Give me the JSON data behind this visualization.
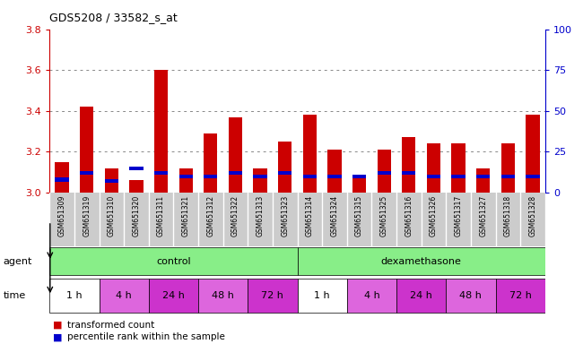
{
  "title": "GDS5208 / 33582_s_at",
  "samples": [
    "GSM651309",
    "GSM651319",
    "GSM651310",
    "GSM651320",
    "GSM651311",
    "GSM651321",
    "GSM651312",
    "GSM651322",
    "GSM651313",
    "GSM651323",
    "GSM651314",
    "GSM651324",
    "GSM651315",
    "GSM651325",
    "GSM651316",
    "GSM651326",
    "GSM651317",
    "GSM651327",
    "GSM651318",
    "GSM651328"
  ],
  "transformed_count": [
    3.15,
    3.42,
    3.12,
    3.06,
    3.6,
    3.12,
    3.29,
    3.37,
    3.12,
    3.25,
    3.38,
    3.21,
    3.08,
    3.21,
    3.27,
    3.24,
    3.24,
    3.12,
    3.24,
    3.38
  ],
  "percentile_rank_scaled": [
    3.064,
    3.096,
    3.056,
    3.12,
    3.096,
    3.08,
    3.08,
    3.096,
    3.08,
    3.096,
    3.08,
    3.08,
    3.08,
    3.096,
    3.096,
    3.08,
    3.08,
    3.08,
    3.08,
    3.08
  ],
  "ylim_left": [
    3.0,
    3.8
  ],
  "ylim_right": [
    0,
    100
  ],
  "yticks_left": [
    3.0,
    3.2,
    3.4,
    3.6,
    3.8
  ],
  "yticks_right": [
    0,
    25,
    50,
    75,
    100
  ],
  "time_groups": [
    {
      "label": "1 h",
      "start": 0,
      "end": 2,
      "color": "#ffffff"
    },
    {
      "label": "4 h",
      "start": 2,
      "end": 4,
      "color": "#dd66dd"
    },
    {
      "label": "24 h",
      "start": 4,
      "end": 6,
      "color": "#cc33cc"
    },
    {
      "label": "48 h",
      "start": 6,
      "end": 8,
      "color": "#dd66dd"
    },
    {
      "label": "72 h",
      "start": 8,
      "end": 10,
      "color": "#cc33cc"
    },
    {
      "label": "1 h",
      "start": 10,
      "end": 12,
      "color": "#ffffff"
    },
    {
      "label": "4 h",
      "start": 12,
      "end": 14,
      "color": "#dd66dd"
    },
    {
      "label": "24 h",
      "start": 14,
      "end": 16,
      "color": "#cc33cc"
    },
    {
      "label": "48 h",
      "start": 16,
      "end": 18,
      "color": "#dd66dd"
    },
    {
      "label": "72 h",
      "start": 18,
      "end": 20,
      "color": "#cc33cc"
    }
  ],
  "bar_color_red": "#cc0000",
  "bar_color_blue": "#0000cc",
  "bar_width": 0.55,
  "background_color": "#ffffff",
  "grid_color": "#888888",
  "tick_color_left": "#cc0000",
  "tick_color_right": "#0000cc",
  "label_color": "#555555",
  "agent_color": "#88ee88",
  "xticklabel_bg": "#cccccc",
  "legend_red_text": "transformed count",
  "legend_blue_text": "percentile rank within the sample"
}
